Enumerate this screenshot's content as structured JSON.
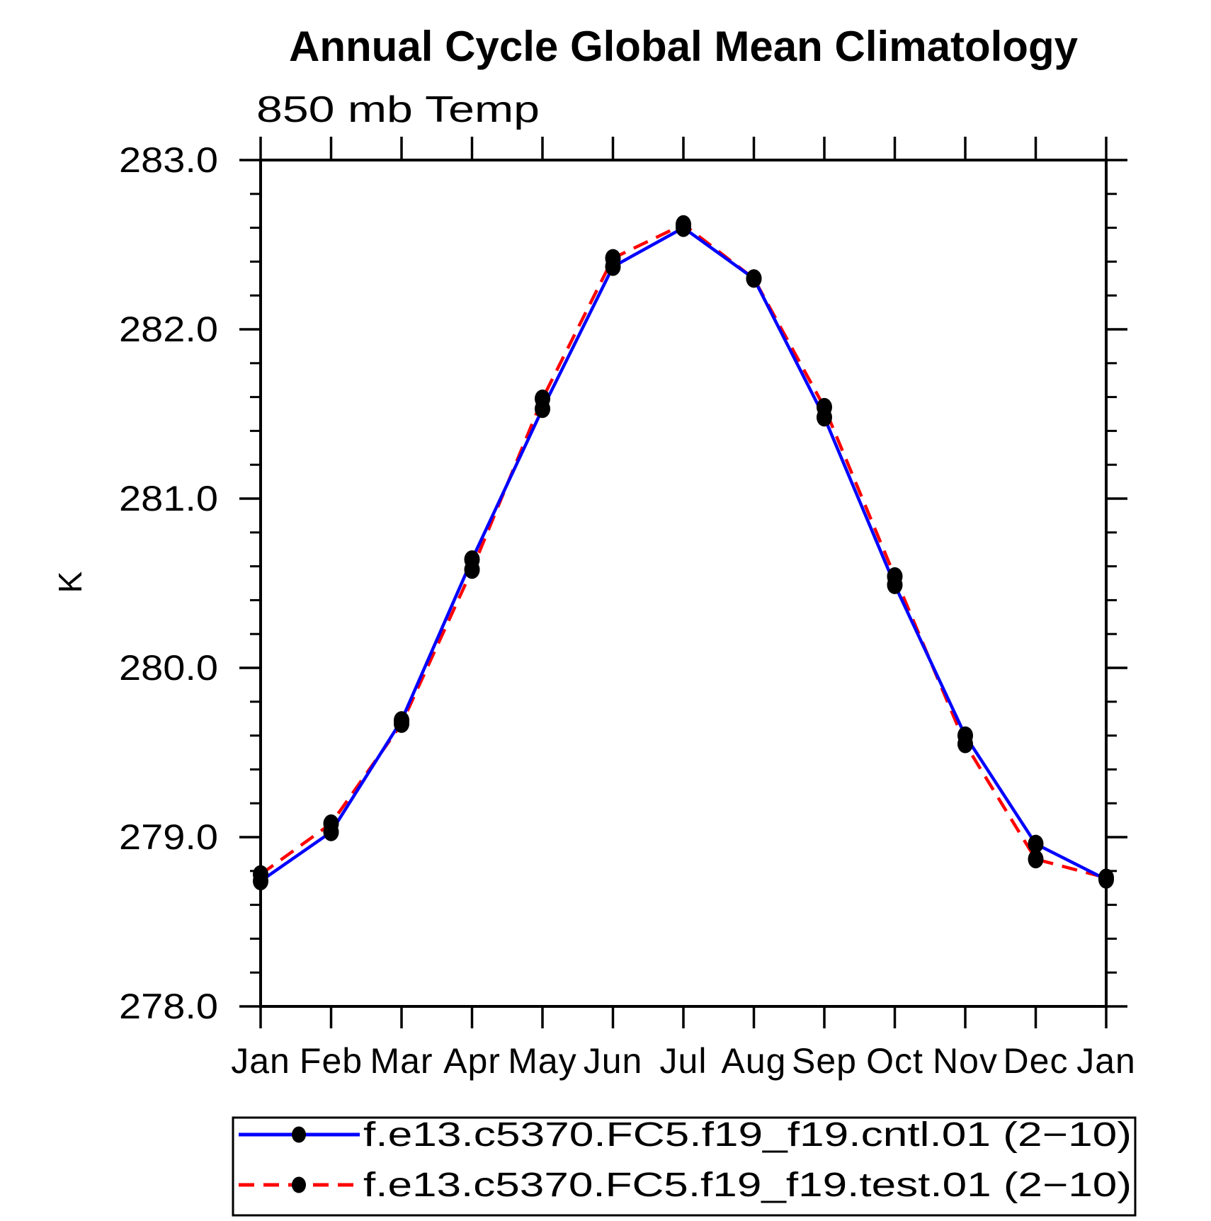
{
  "title": "Annual Cycle Global Mean Climatology",
  "colors": {
    "background": "#ffffff",
    "axis": "#000000",
    "marker": "#000000",
    "series_cntl": "#0000ff",
    "series_test": "#ff0000"
  },
  "chart_data": {
    "type": "line",
    "title": "Annual Cycle Global Mean Climatology",
    "subtitle": "850 mb Temp",
    "xlabel": "",
    "ylabel": "K",
    "grid": false,
    "legend_position": "bottom",
    "ylim": [
      278.0,
      283.0
    ],
    "y_major_ticks": [
      278.0,
      279.0,
      280.0,
      281.0,
      282.0,
      283.0
    ],
    "y_major_tick_labels": [
      "278.0",
      "279.0",
      "280.0",
      "281.0",
      "282.0",
      "283.0"
    ],
    "y_minor_step": 0.2,
    "categories": [
      "Jan",
      "Feb",
      "Mar",
      "Apr",
      "May",
      "Jun",
      "Jul",
      "Aug",
      "Sep",
      "Oct",
      "Nov",
      "Dec",
      "Jan"
    ],
    "marker": "filled-circle",
    "marker_color": "#000000",
    "series": [
      {
        "name": "f.e13.c5370.FC5.f19_f19.cntl.01 (2−10)",
        "color": "#0000ff",
        "line_style": "solid",
        "values": [
          278.74,
          279.03,
          279.69,
          280.64,
          281.53,
          282.37,
          282.6,
          282.3,
          281.48,
          280.49,
          279.6,
          278.96,
          278.75
        ]
      },
      {
        "name": "f.e13.c5370.FC5.f19_f19.test.01 (2−10)",
        "color": "#ff0000",
        "line_style": "dashed",
        "values": [
          278.78,
          279.08,
          279.67,
          280.58,
          281.59,
          282.42,
          282.62,
          282.3,
          281.54,
          280.54,
          279.55,
          278.87,
          278.76
        ]
      }
    ]
  }
}
